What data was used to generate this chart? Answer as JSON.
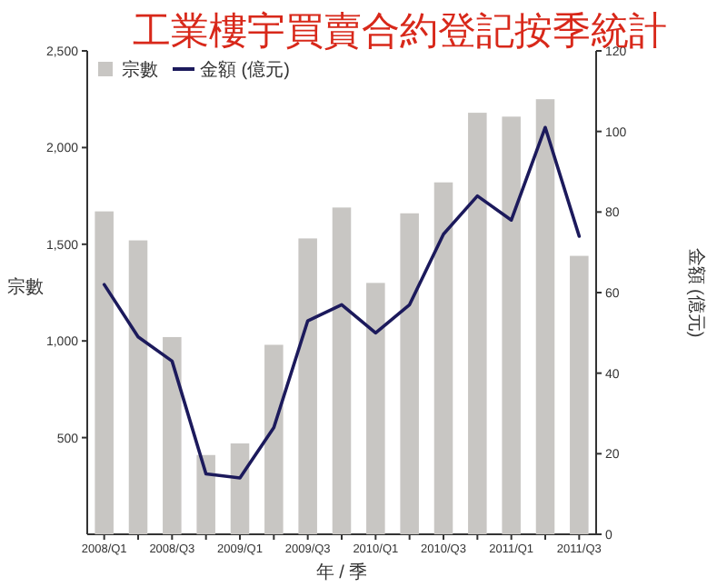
{
  "chart_data": {
    "type": "bar",
    "title": "工業樓宇買賣合約登記按季統計",
    "xlabel": "年 / 季",
    "ylabel": "宗數",
    "y2label": "金額 (億元)",
    "categories": [
      "2008/Q1",
      null,
      "2008/Q3",
      null,
      "2009/Q1",
      null,
      "2009/Q3",
      null,
      "2010/Q1",
      null,
      "2010/Q3",
      null,
      "2011/Q1",
      null,
      "2011/Q3"
    ],
    "series": [
      {
        "name": "宗數",
        "color": "#c8c6c3",
        "values": [
          1670,
          1520,
          1020,
          410,
          470,
          980,
          1530,
          1690,
          1300,
          1660,
          1820,
          2180,
          2160,
          2250,
          1440
        ]
      },
      {
        "name": "金額 (億元)",
        "type": "line",
        "axis": "y2",
        "color": "#1c1a5c",
        "values": [
          62,
          49,
          43,
          15,
          14,
          26.5,
          53,
          57,
          50,
          57,
          74.5,
          84,
          78,
          101,
          74
        ]
      }
    ],
    "ylim": [
      0,
      2500
    ],
    "yticks": [
      {
        "value": 500,
        "label": "500"
      },
      {
        "value": 1000,
        "label": "1,000"
      },
      {
        "value": 1500,
        "label": "1,500"
      },
      {
        "value": 2000,
        "label": "2,000"
      },
      {
        "value": 2500,
        "label": "2,500"
      }
    ],
    "y2lim": [
      0,
      120
    ],
    "y2ticks": [
      0,
      20,
      40,
      60,
      80,
      100,
      120
    ],
    "legend": "top left",
    "grid": false
  }
}
